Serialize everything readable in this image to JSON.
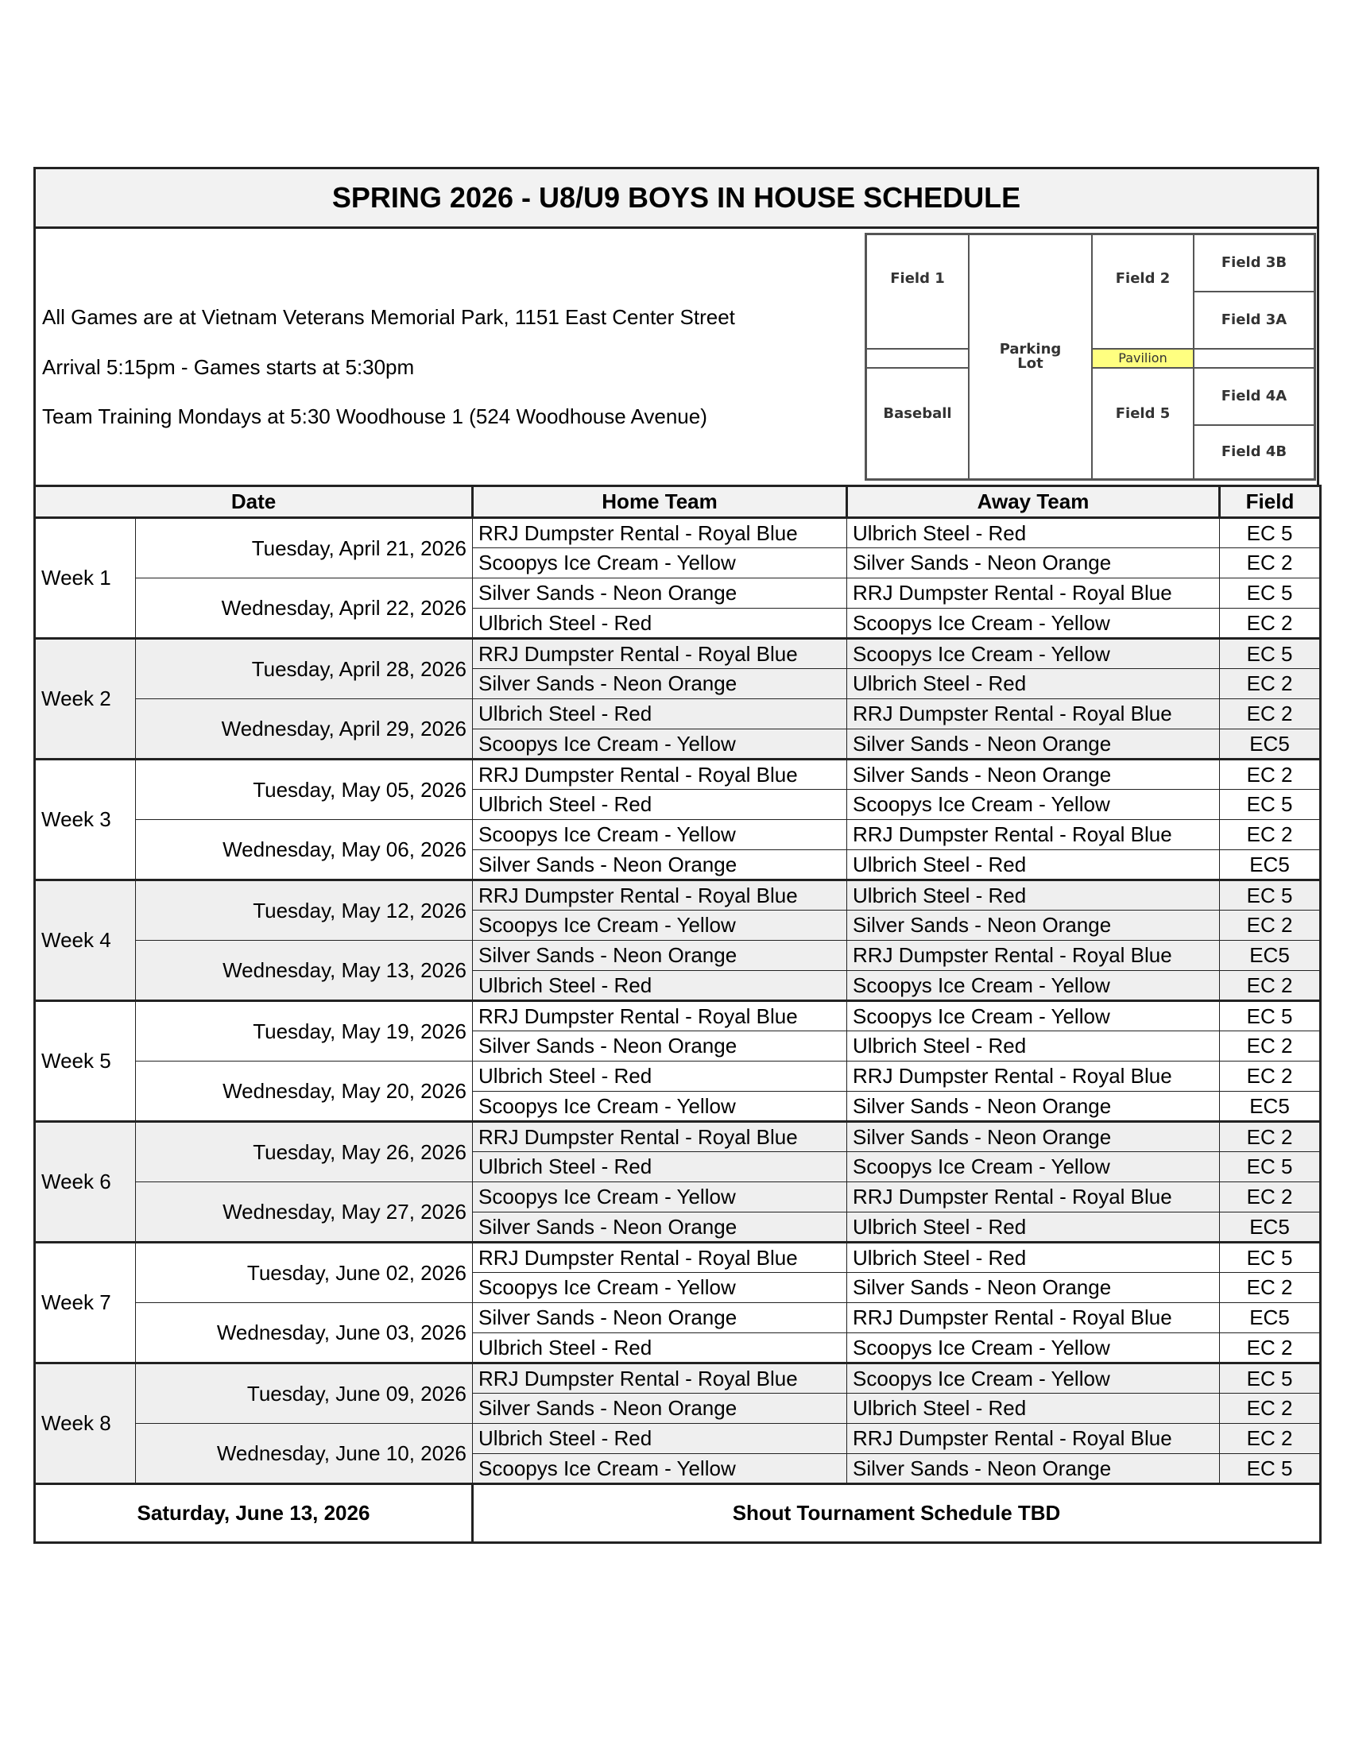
{
  "title": "SPRING 2026 - U8/U9 BOYS IN HOUSE  SCHEDULE",
  "info": [
    "All Games are at Vietnam Veterans Memorial Park, 1151 East Center Street",
    "Arrival 5:15pm - Games starts at 5:30pm",
    "Team Training Mondays at 5:30 Woodhouse 1 (524 Woodhouse Avenue)"
  ],
  "map": {
    "field1": "Field 1",
    "baseball": "Baseball",
    "parking": "Parking Lot",
    "field2": "Field 2",
    "pavilion": "Pavilion",
    "field5": "Field 5",
    "field3b": "Field 3B",
    "field3a": "Field 3A",
    "field4a": "Field 4A",
    "field4b": "Field 4B",
    "pavilion_color": "#ffff80"
  },
  "headers": {
    "date": "Date",
    "home": "Home Team",
    "away": "Away Team",
    "field": "Field"
  },
  "weeks": [
    {
      "label": "Week 1",
      "days": [
        {
          "date": "Tuesday, April 21, 2026",
          "games": [
            [
              "RRJ Dumpster Rental - Royal Blue",
              "Ulbrich Steel - Red",
              "EC 5"
            ],
            [
              "Scoopys Ice Cream - Yellow",
              "Silver Sands - Neon Orange",
              "EC 2"
            ]
          ]
        },
        {
          "date": "Wednesday, April 22, 2026",
          "games": [
            [
              "Silver Sands - Neon Orange",
              "RRJ Dumpster Rental - Royal Blue",
              "EC 5"
            ],
            [
              "Ulbrich Steel - Red",
              "Scoopys Ice Cream - Yellow",
              "EC 2"
            ]
          ]
        }
      ]
    },
    {
      "label": "Week 2",
      "days": [
        {
          "date": "Tuesday, April 28, 2026",
          "games": [
            [
              "RRJ Dumpster Rental - Royal Blue",
              "Scoopys Ice Cream - Yellow",
              "EC 5"
            ],
            [
              "Silver Sands - Neon Orange",
              "Ulbrich Steel - Red",
              "EC 2"
            ]
          ]
        },
        {
          "date": "Wednesday, April 29, 2026",
          "games": [
            [
              "Ulbrich Steel - Red",
              "RRJ Dumpster Rental - Royal Blue",
              "EC 2"
            ],
            [
              "Scoopys Ice Cream - Yellow",
              "Silver Sands - Neon Orange",
              "EC5"
            ]
          ]
        }
      ]
    },
    {
      "label": "Week 3",
      "days": [
        {
          "date": "Tuesday, May 05, 2026",
          "games": [
            [
              "RRJ Dumpster Rental - Royal Blue",
              "Silver Sands - Neon Orange",
              "EC 2"
            ],
            [
              "Ulbrich Steel - Red",
              "Scoopys Ice Cream - Yellow",
              "EC 5"
            ]
          ]
        },
        {
          "date": "Wednesday, May 06, 2026",
          "games": [
            [
              "Scoopys Ice Cream - Yellow",
              "RRJ Dumpster Rental - Royal Blue",
              "EC 2"
            ],
            [
              "Silver Sands - Neon Orange",
              "Ulbrich Steel - Red",
              "EC5"
            ]
          ]
        }
      ]
    },
    {
      "label": "Week 4",
      "days": [
        {
          "date": "Tuesday, May 12, 2026",
          "games": [
            [
              "RRJ Dumpster Rental - Royal Blue",
              "Ulbrich Steel - Red",
              "EC 5"
            ],
            [
              "Scoopys Ice Cream - Yellow",
              "Silver Sands - Neon Orange",
              "EC 2"
            ]
          ]
        },
        {
          "date": "Wednesday, May 13, 2026",
          "games": [
            [
              "Silver Sands - Neon Orange",
              "RRJ Dumpster Rental - Royal Blue",
              "EC5"
            ],
            [
              "Ulbrich Steel - Red",
              "Scoopys Ice Cream - Yellow",
              "EC 2"
            ]
          ]
        }
      ]
    },
    {
      "label": "Week 5",
      "days": [
        {
          "date": "Tuesday, May 19, 2026",
          "games": [
            [
              "RRJ Dumpster Rental - Royal Blue",
              "Scoopys Ice Cream - Yellow",
              "EC 5"
            ],
            [
              "Silver Sands - Neon Orange",
              "Ulbrich Steel - Red",
              "EC 2"
            ]
          ]
        },
        {
          "date": "Wednesday, May 20, 2026",
          "games": [
            [
              "Ulbrich Steel - Red",
              "RRJ Dumpster Rental - Royal Blue",
              "EC 2"
            ],
            [
              "Scoopys Ice Cream - Yellow",
              "Silver Sands - Neon Orange",
              "EC5"
            ]
          ]
        }
      ]
    },
    {
      "label": "Week 6",
      "days": [
        {
          "date": "Tuesday, May 26, 2026",
          "games": [
            [
              "RRJ Dumpster Rental - Royal Blue",
              "Silver Sands - Neon Orange",
              "EC 2"
            ],
            [
              "Ulbrich Steel - Red",
              "Scoopys Ice Cream - Yellow",
              "EC 5"
            ]
          ]
        },
        {
          "date": "Wednesday, May 27, 2026",
          "games": [
            [
              "Scoopys Ice Cream - Yellow",
              "RRJ Dumpster Rental - Royal Blue",
              "EC 2"
            ],
            [
              "Silver Sands - Neon Orange",
              "Ulbrich Steel - Red",
              "EC5"
            ]
          ]
        }
      ]
    },
    {
      "label": "Week 7",
      "days": [
        {
          "date": "Tuesday, June 02, 2026",
          "games": [
            [
              "RRJ Dumpster Rental - Royal Blue",
              "Ulbrich Steel - Red",
              "EC 5"
            ],
            [
              "Scoopys Ice Cream - Yellow",
              "Silver Sands - Neon Orange",
              "EC 2"
            ]
          ]
        },
        {
          "date": "Wednesday, June 03, 2026",
          "games": [
            [
              "Silver Sands - Neon Orange",
              "RRJ Dumpster Rental - Royal Blue",
              "EC5"
            ],
            [
              "Ulbrich Steel - Red",
              "Scoopys Ice Cream - Yellow",
              "EC 2"
            ]
          ]
        }
      ]
    },
    {
      "label": "Week 8",
      "days": [
        {
          "date": "Tuesday, June 09, 2026",
          "games": [
            [
              "RRJ Dumpster Rental - Royal Blue",
              "Scoopys Ice Cream - Yellow",
              "EC 5"
            ],
            [
              "Silver Sands - Neon Orange",
              "Ulbrich Steel - Red",
              "EC 2"
            ]
          ]
        },
        {
          "date": "Wednesday, June 10, 2026",
          "games": [
            [
              "Ulbrich Steel - Red",
              "RRJ Dumpster Rental - Royal Blue",
              "EC 2"
            ],
            [
              "Scoopys Ice Cream - Yellow",
              "Silver Sands - Neon Orange",
              "EC 5"
            ]
          ]
        }
      ]
    }
  ],
  "footer": {
    "date": "Saturday, June 13, 2026",
    "note": "Shout Tournament Schedule TBD"
  },
  "colors": {
    "alt_row": "#efefef",
    "header_bg": "#f2f2f2"
  }
}
